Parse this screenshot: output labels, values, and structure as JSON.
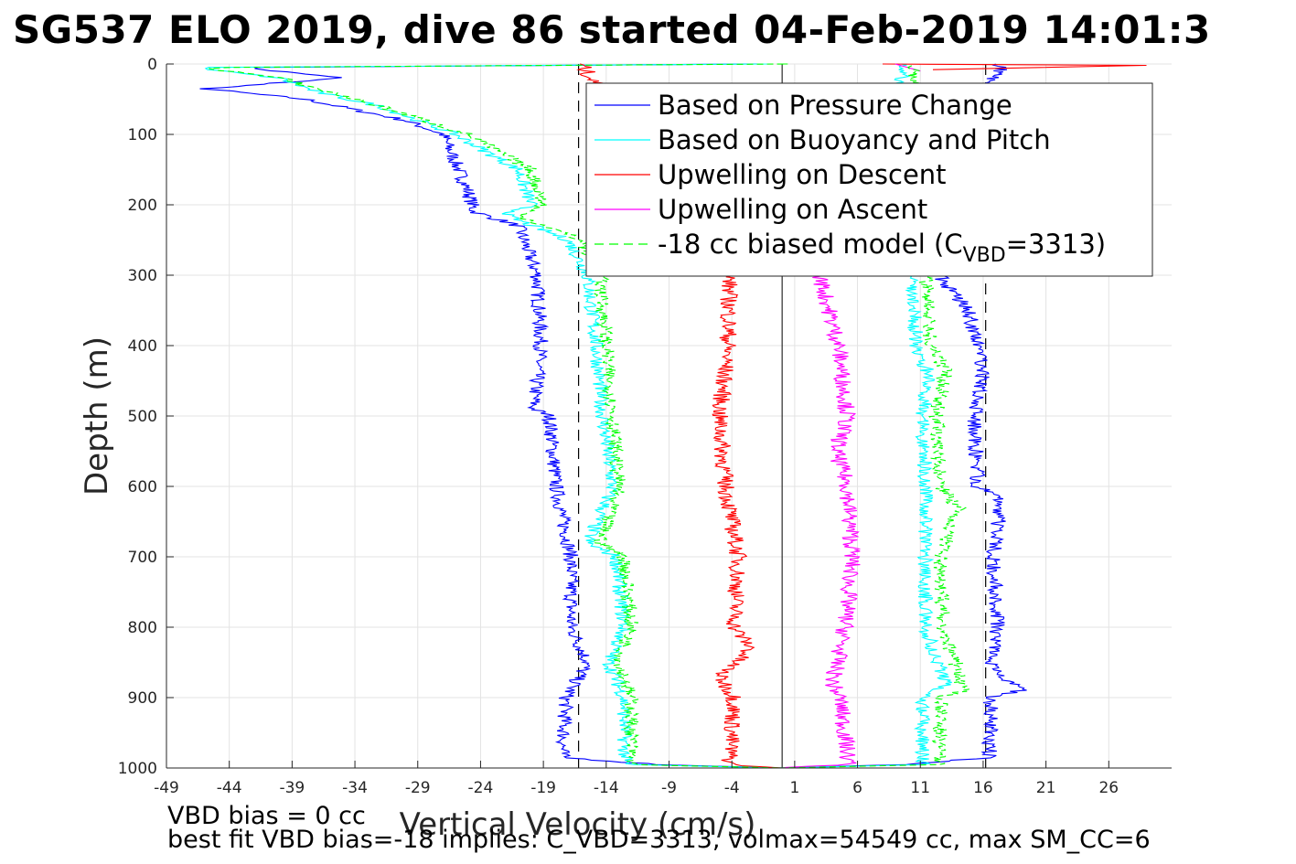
{
  "title": "SG537 ELO 2019, dive 86 started 04-Feb-2019 14:01:3",
  "footnotes": {
    "line1": "VBD bias = 0 cc",
    "line2": "best fit VBD bias=-18 implies: C_VBD=3313, volmax=54549 cc, max SM_CC=6"
  },
  "chart_data": {
    "type": "line",
    "xlabel": "Vertical Velocity (cm/s)",
    "ylabel": "Depth (m)",
    "xlim": [
      -49,
      31
    ],
    "ylim": [
      0,
      1000
    ],
    "y_reversed": true,
    "grid": true,
    "xticks": [
      -49,
      -44,
      -39,
      -34,
      -29,
      -24,
      -19,
      -14,
      -9,
      -4,
      1,
      6,
      11,
      16,
      21,
      26
    ],
    "yticks": [
      0,
      100,
      200,
      300,
      400,
      500,
      600,
      700,
      800,
      900,
      1000
    ],
    "legend_placement": "top-right",
    "reference_lines": {
      "vertical_solid_x": 0,
      "vertical_dashed_x": [
        -16.2,
        16.2
      ]
    },
    "series": [
      {
        "name": "Based on Pressure Change",
        "color": "#0000ff",
        "dash": "solid",
        "descent": {
          "depth": [
            0,
            5,
            20,
            35,
            50,
            80,
            100,
            140,
            180,
            210,
            230,
            300,
            400,
            490,
            500,
            600,
            700,
            800,
            850,
            900,
            985,
            995,
            1000
          ],
          "values": [
            -2,
            -43,
            -35,
            -46,
            -38,
            -30,
            -27,
            -26,
            -25,
            -24.5,
            -21,
            -19.5,
            -19.2,
            -19.8,
            -18.5,
            -18,
            -16.8,
            -16.8,
            -15.5,
            -17.2,
            -17.5,
            -10,
            0
          ]
        },
        "ascent": {
          "depth": [
            1000,
            995,
            985,
            900,
            890,
            850,
            800,
            700,
            620,
            600,
            500,
            440,
            400,
            350,
            300,
            100,
            5,
            0
          ],
          "values": [
            0,
            10,
            16.5,
            16.6,
            19,
            16.5,
            17.2,
            16.8,
            17.5,
            15.6,
            15.3,
            16,
            15.6,
            14.8,
            12.5,
            12.5,
            17.5,
            17
          ]
        }
      },
      {
        "name": "Based on Buoyancy and Pitch",
        "color": "#00ffff",
        "dash": "solid",
        "descent": {
          "depth": [
            0,
            5,
            20,
            40,
            60,
            100,
            150,
            200,
            215,
            250,
            300,
            400,
            500,
            600,
            680,
            700,
            800,
            850,
            900,
            995,
            1000
          ],
          "values": [
            -1,
            -47,
            -40,
            -37,
            -32,
            -26,
            -21,
            -20,
            -22,
            -17,
            -15.5,
            -14.8,
            -14.3,
            -13.5,
            -15.5,
            -13.2,
            -12.6,
            -13.8,
            -12.6,
            -12.5,
            0
          ]
        },
        "ascent": {
          "depth": [
            1000,
            995,
            900,
            880,
            800,
            700,
            600,
            500,
            440,
            400,
            300,
            100,
            5,
            0
          ],
          "values": [
            0,
            11.2,
            11.2,
            13,
            11.4,
            11.4,
            11.4,
            11.2,
            11.6,
            10.7,
            10.2,
            9.8,
            9.5,
            9.5
          ]
        }
      },
      {
        "name": "Upwelling on Descent",
        "color": "#ff0000",
        "dash": "solid",
        "descent": {
          "depth": [
            0,
            300,
            400,
            500,
            600,
            700,
            800,
            830,
            870,
            900,
            995,
            1000
          ],
          "values": [
            -16,
            -4.2,
            -4.3,
            -5,
            -4.5,
            -3.5,
            -3.8,
            -2.5,
            -5,
            -3.8,
            -4.2,
            0
          ]
        },
        "ascent": {
          "depth": [
            0,
            2,
            8
          ],
          "values": [
            8,
            29,
            12
          ]
        }
      },
      {
        "name": "Upwelling on Ascent",
        "color": "#ff00ff",
        "dash": "solid",
        "descent": {
          "depth": [
            300,
            400,
            500,
            550,
            600,
            700,
            800,
            880,
            900,
            995,
            1000
          ],
          "values": [
            3,
            4.5,
            5.2,
            4.3,
            5.2,
            5.6,
            5,
            4,
            4.6,
            5.3,
            0
          ]
        },
        "ascent": {
          "depth": [
            0,
            10
          ],
          "values": [
            9,
            11
          ]
        }
      },
      {
        "name": "-18 cc biased model (C_VBD=3313)",
        "color": "#00ff00",
        "dash": "dashed",
        "descent": {
          "depth": [
            0,
            5,
            20,
            40,
            60,
            100,
            150,
            200,
            215,
            250,
            300,
            400,
            500,
            600,
            680,
            700,
            800,
            850,
            900,
            995,
            1000
          ],
          "values": [
            0,
            -46,
            -40,
            -36,
            -32,
            -25,
            -20,
            -19,
            -21,
            -16,
            -14.5,
            -14,
            -13.5,
            -13,
            -14.5,
            -12.6,
            -12,
            -13,
            -12,
            -12,
            0
          ]
        },
        "ascent": {
          "depth": [
            1000,
            995,
            900,
            890,
            800,
            700,
            630,
            600,
            500,
            435,
            400,
            300,
            100,
            5,
            0
          ],
          "values": [
            0,
            12.5,
            12.6,
            14.5,
            12.8,
            12.6,
            14,
            12.5,
            12.3,
            13,
            11.8,
            11.4,
            11,
            10.5,
            10.5
          ]
        }
      }
    ],
    "legend": [
      {
        "label": "Based on Pressure Change",
        "color": "#0000ff",
        "dash": "solid"
      },
      {
        "label": "Based on Buoyancy and Pitch",
        "color": "#00ffff",
        "dash": "solid"
      },
      {
        "label": "Upwelling on Descent",
        "color": "#ff0000",
        "dash": "solid"
      },
      {
        "label": "Upwelling on Ascent",
        "color": "#ff00ff",
        "dash": "solid"
      },
      {
        "label": "-18 cc biased model (C",
        "sub": "VBD",
        "label_tail": "=3313)",
        "color": "#00ff00",
        "dash": "dashed"
      }
    ]
  }
}
